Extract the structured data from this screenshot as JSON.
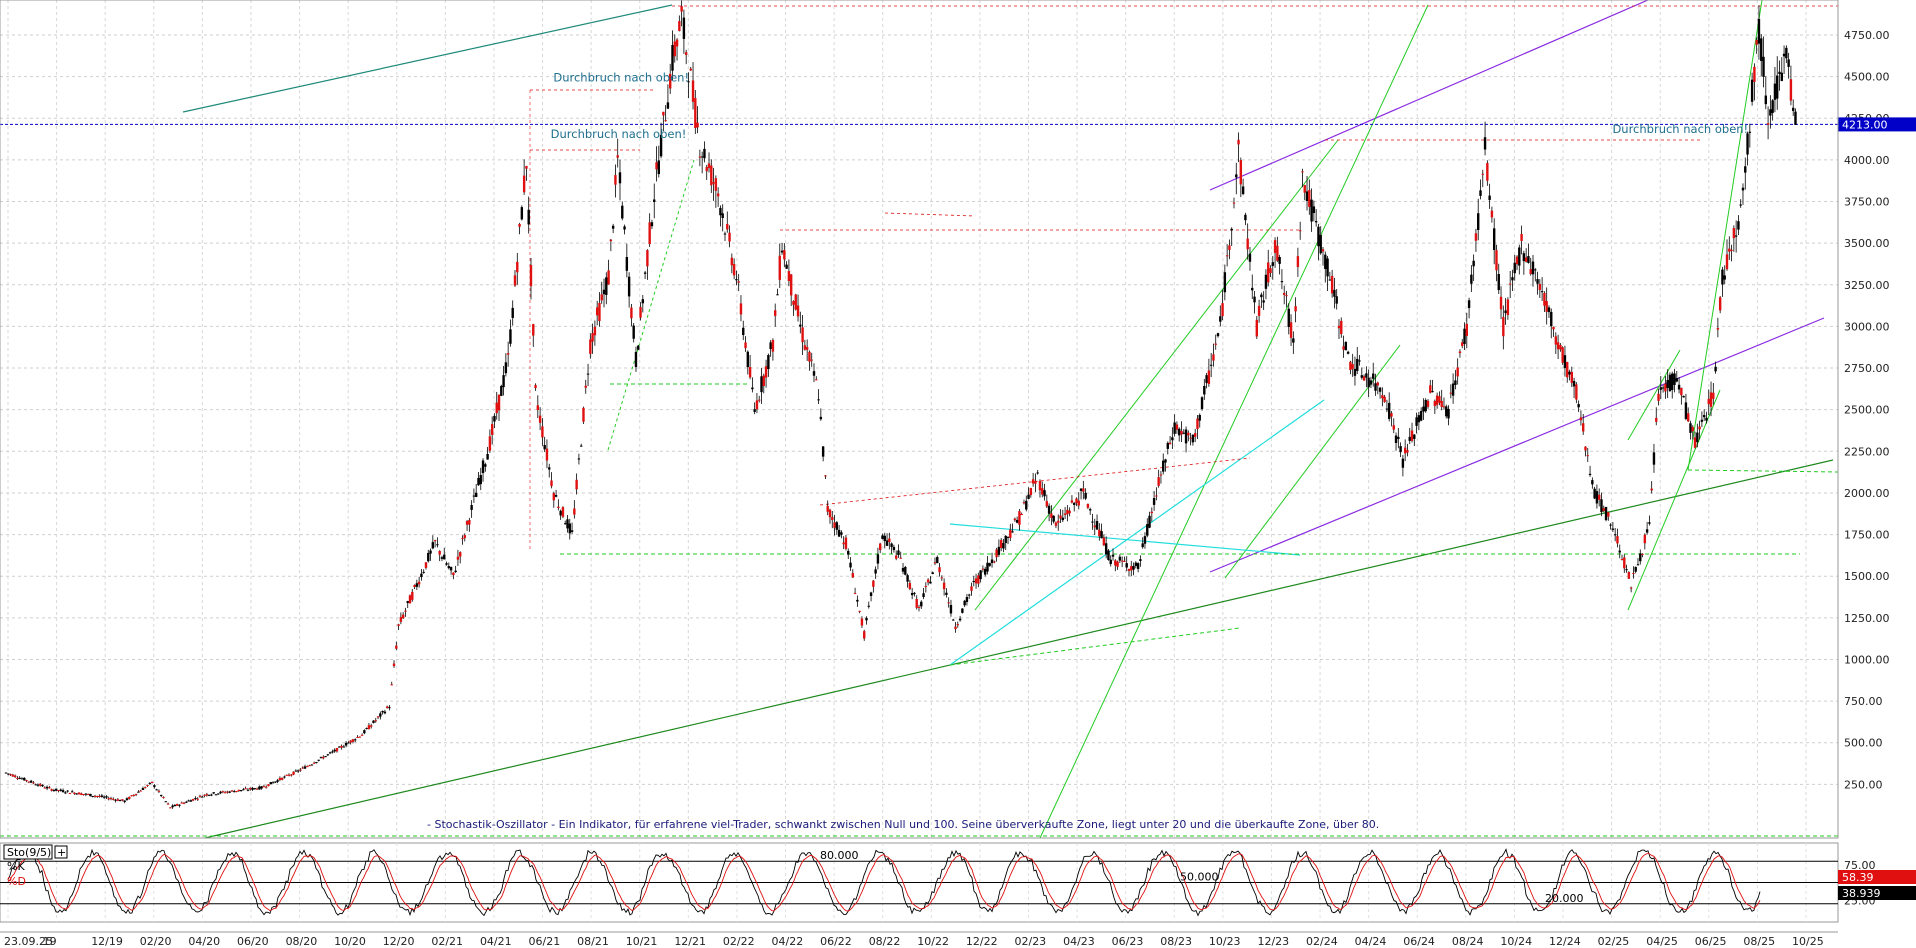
{
  "chart_data": [
    {
      "type": "candlestick",
      "title": "",
      "ylim": [
        0,
        4900
      ],
      "yticks": [
        250,
        500,
        750,
        1000,
        1250,
        1500,
        1750,
        2000,
        2250,
        2500,
        2750,
        3000,
        3250,
        3500,
        3750,
        4000,
        4250,
        4500,
        4750
      ],
      "ytick_labels": [
        "250.00",
        "500.00",
        "750.00",
        "1000.00",
        "1250.00",
        "1500.00",
        "1750.00",
        "2000.00",
        "2250.00",
        "2500.00",
        "2750.00",
        "3000.00",
        "3250.00",
        "3500.00",
        "3750.00",
        "4000.00",
        "4250.00",
        "4500.00",
        "4750.00"
      ],
      "xtick_labels": [
        "23.09.25",
        "19",
        "12/19",
        "02/20",
        "04/20",
        "06/20",
        "08/20",
        "10/20",
        "12/20",
        "02/21",
        "04/21",
        "06/21",
        "08/21",
        "10/21",
        "12/21",
        "02/22",
        "04/22",
        "06/22",
        "08/22",
        "10/22",
        "12/22",
        "02/23",
        "04/23",
        "06/23",
        "08/23",
        "10/23",
        "12/23",
        "02/24",
        "04/24",
        "06/24",
        "08/24",
        "10/24",
        "12/24",
        "02/25",
        "04/25",
        "06/25",
        "08/25",
        "10/25"
      ],
      "price_path": [
        [
          0,
          320
        ],
        [
          5,
          220
        ],
        [
          10,
          180
        ],
        [
          13,
          150
        ],
        [
          16,
          260
        ],
        [
          18,
          110
        ],
        [
          22,
          190
        ],
        [
          28,
          230
        ],
        [
          32,
          330
        ],
        [
          36,
          450
        ],
        [
          39,
          550
        ],
        [
          42,
          720
        ],
        [
          43,
          1200
        ],
        [
          47,
          1700
        ],
        [
          49,
          1500
        ],
        [
          53,
          2300
        ],
        [
          55,
          2800
        ],
        [
          57,
          4000
        ],
        [
          58,
          2600
        ],
        [
          60,
          2000
        ],
        [
          62,
          1750
        ],
        [
          64,
          2900
        ],
        [
          66,
          3300
        ],
        [
          67,
          4000
        ],
        [
          69,
          2800
        ],
        [
          71,
          3800
        ],
        [
          73,
          4600
        ],
        [
          74,
          4850
        ],
        [
          76,
          4100
        ],
        [
          78,
          3800
        ],
        [
          80,
          3300
        ],
        [
          82,
          2500
        ],
        [
          84,
          2900
        ],
        [
          85,
          3500
        ],
        [
          87,
          3000
        ],
        [
          89,
          2600
        ],
        [
          90,
          1900
        ],
        [
          92,
          1700
        ],
        [
          94,
          1150
        ],
        [
          96,
          1750
        ],
        [
          98,
          1600
        ],
        [
          100,
          1300
        ],
        [
          102,
          1600
        ],
        [
          104,
          1200
        ],
        [
          106,
          1450
        ],
        [
          108,
          1600
        ],
        [
          111,
          1850
        ],
        [
          113,
          2100
        ],
        [
          115,
          1800
        ],
        [
          118,
          2000
        ],
        [
          121,
          1600
        ],
        [
          124,
          1550
        ],
        [
          126,
          2000
        ],
        [
          128,
          2400
        ],
        [
          130,
          2300
        ],
        [
          133,
          3000
        ],
        [
          135,
          4050
        ],
        [
          137,
          3000
        ],
        [
          139,
          3500
        ],
        [
          141,
          2900
        ],
        [
          142,
          3900
        ],
        [
          145,
          3300
        ],
        [
          147,
          2800
        ],
        [
          149,
          2700
        ],
        [
          151,
          2600
        ],
        [
          153,
          2200
        ],
        [
          156,
          2600
        ],
        [
          158,
          2500
        ],
        [
          160,
          3000
        ],
        [
          162,
          4050
        ],
        [
          164,
          3000
        ],
        [
          166,
          3500
        ],
        [
          168,
          3250
        ],
        [
          170,
          2900
        ],
        [
          172,
          2600
        ],
        [
          174,
          2000
        ],
        [
          176,
          1800
        ],
        [
          178,
          1450
        ],
        [
          180,
          1800
        ],
        [
          181,
          2600
        ],
        [
          183,
          2700
        ],
        [
          185,
          2300
        ],
        [
          187,
          2600
        ],
        [
          188,
          3300
        ],
        [
          190,
          3700
        ],
        [
          192,
          4800
        ],
        [
          193,
          4300
        ],
        [
          195,
          4600
        ],
        [
          196,
          4213
        ]
      ],
      "last_price": 4213.0,
      "last_price_label": "4213.00",
      "annotations": [
        {
          "text": "Durchbruch nach oben!",
          "x": 60.5,
          "y": 4470
        },
        {
          "text": "Durchbruch nach oben!",
          "x": 60.2,
          "y": 4130
        },
        {
          "text": "Durchbruch nach oben!",
          "x": 176.5,
          "y": 4160
        }
      ],
      "note": "- Stochastik-Oszillator - Ein Indikator, für erfahrene viel-Trader, schwankt zwischen Null und 100. Seine überverkaufte Zone, liegt unter 20 und die überkaufte Zone, über 80.",
      "colors": {
        "candle": "#e01010",
        "candle_wick": "#000000",
        "last_price_line": "#0000c8",
        "last_price_box": "#0000c8"
      }
    },
    {
      "type": "line",
      "title": "Sto(9/5)",
      "series": [
        {
          "name": "%K",
          "color": "#000000"
        },
        {
          "name": "%D",
          "color": "#e01010"
        }
      ],
      "ylim": [
        0,
        100
      ],
      "levels": [
        80,
        50,
        20
      ],
      "level_labels": [
        "80.000",
        "50.000",
        "20.000"
      ],
      "yticks_labels": [
        "75.00",
        "25.00"
      ],
      "last_k": 58.39,
      "last_k_label": "58.39",
      "last_d": 38.939,
      "last_d_label": "38.939"
    }
  ]
}
